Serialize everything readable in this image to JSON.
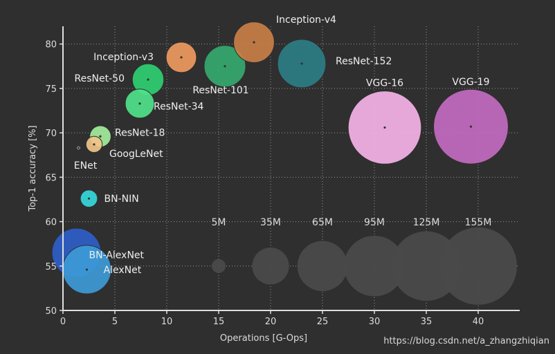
{
  "chart_data": {
    "type": "bubble",
    "title": "",
    "xlabel": "Operations [G-Ops]",
    "ylabel": "Top-1 accuracy [%]",
    "xlim": [
      0,
      44
    ],
    "ylim": [
      50,
      82
    ],
    "xticks": [
      0,
      5,
      10,
      15,
      20,
      25,
      30,
      35,
      40
    ],
    "yticks": [
      50,
      55,
      60,
      65,
      70,
      75,
      80
    ],
    "grid": "dotted",
    "size_unit": "parameters",
    "points": [
      {
        "name": "AlexNet",
        "label": "AlexNet",
        "x": 2.3,
        "y": 54.6,
        "params_m": 61,
        "color": "#3d9ad6"
      },
      {
        "name": "BN-AlexNet",
        "label": "BN-AlexNet",
        "x": 1.3,
        "y": 56.5,
        "params_m": 62,
        "color": "#2f5ec9"
      },
      {
        "name": "BN-NIN",
        "label": "BN-NIN",
        "x": 2.5,
        "y": 62.6,
        "params_m": 7.6,
        "color": "#36d9dc"
      },
      {
        "name": "ENet",
        "label": "ENet",
        "x": 1.5,
        "y": 68.3,
        "params_m": 0.37,
        "color": "#f5f5f5"
      },
      {
        "name": "GoogLeNet",
        "label": "GoogLeNet",
        "x": 3.0,
        "y": 68.7,
        "params_m": 6.8,
        "color": "#f0c48a"
      },
      {
        "name": "ResNet-18",
        "label": "ResNet-18",
        "x": 3.6,
        "y": 69.6,
        "params_m": 11.7,
        "color": "#a3ee9c"
      },
      {
        "name": "ResNet-34",
        "label": "ResNet-34",
        "x": 7.4,
        "y": 73.3,
        "params_m": 21.8,
        "color": "#4fe38b"
      },
      {
        "name": "ResNet-50",
        "label": "ResNet-50",
        "x": 8.2,
        "y": 76.0,
        "params_m": 25.6,
        "color": "#2fcf73"
      },
      {
        "name": "Inception-v3",
        "label": "Inception-v3",
        "x": 11.4,
        "y": 78.5,
        "params_m": 23.8,
        "color": "#ef9a60"
      },
      {
        "name": "ResNet-101",
        "label": "ResNet-101",
        "x": 15.6,
        "y": 77.5,
        "params_m": 44.5,
        "color": "#35a96f"
      },
      {
        "name": "Inception-v4",
        "label": "Inception-v4",
        "x": 18.4,
        "y": 80.2,
        "params_m": 42.7,
        "color": "#c97f46"
      },
      {
        "name": "ResNet-152",
        "label": "ResNet-152",
        "x": 23.0,
        "y": 77.8,
        "params_m": 60.2,
        "color": "#2d7e86"
      },
      {
        "name": "VGG-16",
        "label": "VGG-16",
        "x": 31.0,
        "y": 70.6,
        "params_m": 138,
        "color": "#f6b3e8"
      },
      {
        "name": "VGG-19",
        "label": "VGG-19",
        "x": 39.3,
        "y": 70.7,
        "params_m": 144,
        "color": "#c36bc1"
      }
    ],
    "size_legend": {
      "color": "#4a4a4a",
      "items": [
        {
          "label": "5M",
          "x": 15,
          "y": 55,
          "params_m": 5
        },
        {
          "label": "35M",
          "x": 20,
          "y": 55,
          "params_m": 35
        },
        {
          "label": "65M",
          "x": 25,
          "y": 55,
          "params_m": 65
        },
        {
          "label": "95M",
          "x": 30,
          "y": 55,
          "params_m": 95
        },
        {
          "label": "125M",
          "x": 35,
          "y": 55,
          "params_m": 125
        },
        {
          "label": "155M",
          "x": 40,
          "y": 55,
          "params_m": 155
        }
      ]
    }
  },
  "watermark": "https://blog.csdn.net/a_zhangzhiqian"
}
